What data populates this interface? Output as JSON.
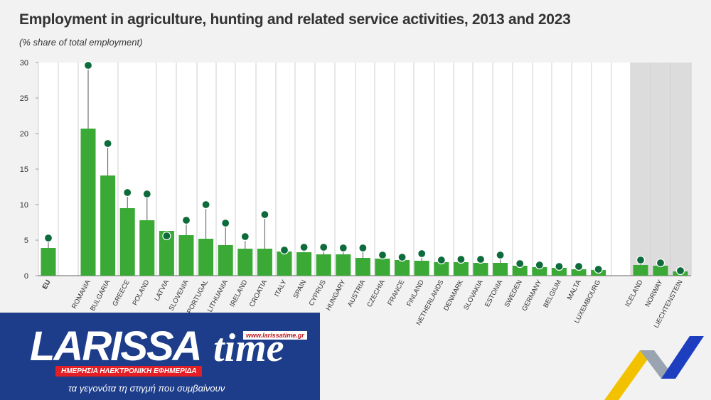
{
  "chart_data": {
    "type": "bar",
    "title": "Employment in agriculture, hunting and related service activities, 2013 and 2023",
    "subtitle": "(% share of total employment)",
    "ylim": [
      0,
      30
    ],
    "yticks": [
      0,
      5,
      10,
      15,
      20,
      25,
      30
    ],
    "grid": "vertical separators",
    "categories": [
      "EU",
      "ROMANIA",
      "BULGARIA",
      "GREECE",
      "POLAND",
      "LATVIA",
      "SLOVENIA",
      "PORTUGAL",
      "LITHUANIA",
      "IRELAND",
      "CROATIA",
      "ITALY",
      "SPAIN",
      "CYPRUS",
      "HUNGARY",
      "AUSTRIA",
      "CZECHIA",
      "FRANCE",
      "FINLAND",
      "NETHERLANDS",
      "DENMARK",
      "SLOVAKIA",
      "ESTONIA",
      "SWEDEN",
      "GERMANY",
      "BELGIUM",
      "MALTA",
      "LUXEMBOURG",
      "ICELAND",
      "NORWAY",
      "LIECHTENSTEIN"
    ],
    "series": [
      {
        "name": "",
        "kind": "bar",
        "values": [
          3.9,
          20.7,
          14.1,
          9.5,
          7.8,
          6.3,
          5.7,
          5.2,
          4.3,
          3.8,
          3.8,
          3.4,
          3.3,
          3.0,
          3.0,
          2.5,
          2.4,
          2.2,
          2.1,
          1.9,
          1.9,
          1.8,
          1.8,
          1.4,
          1.2,
          1.1,
          0.9,
          0.8,
          1.5,
          1.4,
          0.6
        ]
      },
      {
        "name": "",
        "kind": "dot",
        "values": [
          5.3,
          29.6,
          18.6,
          11.7,
          11.5,
          5.6,
          7.8,
          10.0,
          7.4,
          5.5,
          8.6,
          3.6,
          4.0,
          4.0,
          3.9,
          3.9,
          2.9,
          2.6,
          3.1,
          2.2,
          2.3,
          2.3,
          2.9,
          1.7,
          1.5,
          1.3,
          1.3,
          0.9,
          2.2,
          1.8,
          0.7
        ]
      }
    ],
    "colors": {
      "bar": "#3aa935",
      "dot": "#0e6b3b",
      "stem": "#555555",
      "shade": "#dcdcdc"
    }
  },
  "brand": {
    "word": "LARISSA",
    "time": "time",
    "url": "www.larissatime.gr",
    "banner": "ΗΜΕΡΗΣΙΑ ΗΛΕΚΤΡΟΝΙΚΗ ΕΦΗΜΕΡΙΔΑ",
    "slogan": "τα γεγονότα τη στιγμή που συμβαίνουν",
    "color": "#1d3c8a"
  }
}
